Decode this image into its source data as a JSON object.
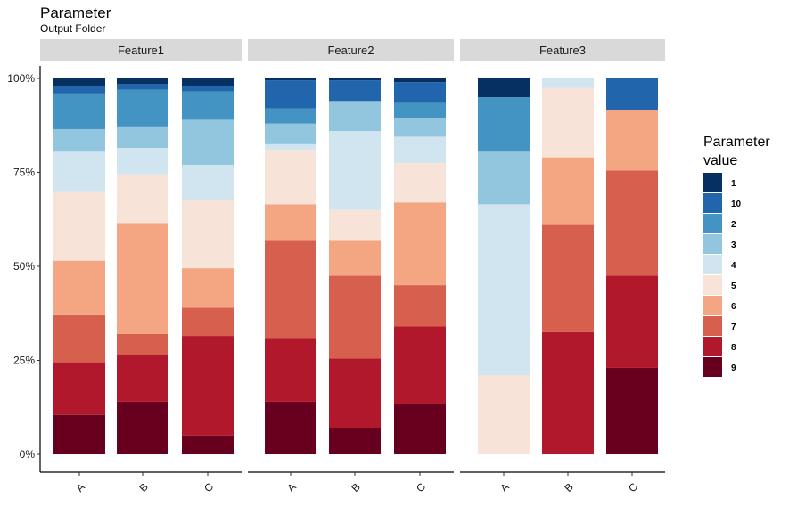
{
  "chart_data": {
    "type": "bar",
    "stacked": true,
    "percent": true,
    "title": "Parameter",
    "subtitle": "Output Folder",
    "legend": {
      "title_lines": [
        "Parameter",
        "value"
      ],
      "placement": "right",
      "entries": [
        "1",
        "10",
        "2",
        "3",
        "4",
        "5",
        "6",
        "7",
        "8",
        "9"
      ]
    },
    "colors": {
      "1": "#053061",
      "10": "#2166ac",
      "2": "#4393c3",
      "3": "#92c5de",
      "4": "#d1e5f0",
      "5": "#f7e3d8",
      "6": "#f4a582",
      "7": "#d6604d",
      "8": "#b2182b",
      "9": "#67001f"
    },
    "stack_order_bottom_to_top": [
      "9",
      "8",
      "7",
      "6",
      "5",
      "4",
      "3",
      "2",
      "10",
      "1"
    ],
    "y_axis": {
      "ylim": [
        0,
        100
      ],
      "ticks": [
        0,
        25,
        50,
        75,
        100
      ],
      "tick_labels": [
        "0%",
        "25%",
        "50%",
        "75%",
        "100%"
      ]
    },
    "grid": false,
    "categories": [
      "A",
      "B",
      "C"
    ],
    "facets": [
      {
        "name": "Feature1",
        "bars": {
          "A": {
            "9": 10.5,
            "8": 14,
            "7": 12.5,
            "6": 14.5,
            "5": 18.5,
            "4": 10.5,
            "3": 6,
            "2": 9.5,
            "10": 2,
            "1": 2
          },
          "B": {
            "9": 14,
            "8": 12.5,
            "7": 5.5,
            "6": 29.5,
            "5": 13,
            "4": 7,
            "3": 5.5,
            "2": 10,
            "10": 1.5,
            "1": 1.5
          },
          "C": {
            "9": 5,
            "8": 26.5,
            "7": 7.5,
            "6": 10.5,
            "5": 18,
            "4": 9.5,
            "3": 12,
            "2": 7.5,
            "10": 1.5,
            "1": 2
          }
        }
      },
      {
        "name": "Feature2",
        "bars": {
          "A": {
            "9": 14,
            "8": 17,
            "7": 26,
            "6": 9.5,
            "5": 14.5,
            "4": 1.5,
            "3": 5.5,
            "2": 4,
            "10": 7.5,
            "1": 0.5
          },
          "B": {
            "9": 7,
            "8": 18.5,
            "7": 22,
            "6": 9.5,
            "5": 8,
            "4": 21,
            "3": 8,
            "2": 0,
            "10": 5.5,
            "1": 0.5
          },
          "C": {
            "9": 13.5,
            "8": 20.5,
            "7": 11,
            "6": 22,
            "5": 10.5,
            "4": 7,
            "3": 5,
            "2": 4,
            "10": 5.5,
            "1": 1
          }
        }
      },
      {
        "name": "Feature3",
        "bars": {
          "A": {
            "9": 0,
            "8": 0,
            "7": 0,
            "6": 0,
            "5": 21,
            "4": 45.5,
            "3": 14,
            "2": 14.5,
            "10": 0,
            "1": 5
          },
          "B": {
            "9": 0,
            "8": 32.5,
            "7": 28.5,
            "6": 18,
            "5": 18.5,
            "4": 2.5,
            "3": 0,
            "2": 0,
            "10": 0,
            "1": 0
          },
          "C": {
            "9": 23,
            "8": 24.5,
            "7": 28,
            "6": 16,
            "5": 0,
            "4": 0,
            "3": 0,
            "2": 0,
            "10": 8.5,
            "1": 0
          }
        }
      }
    ]
  }
}
